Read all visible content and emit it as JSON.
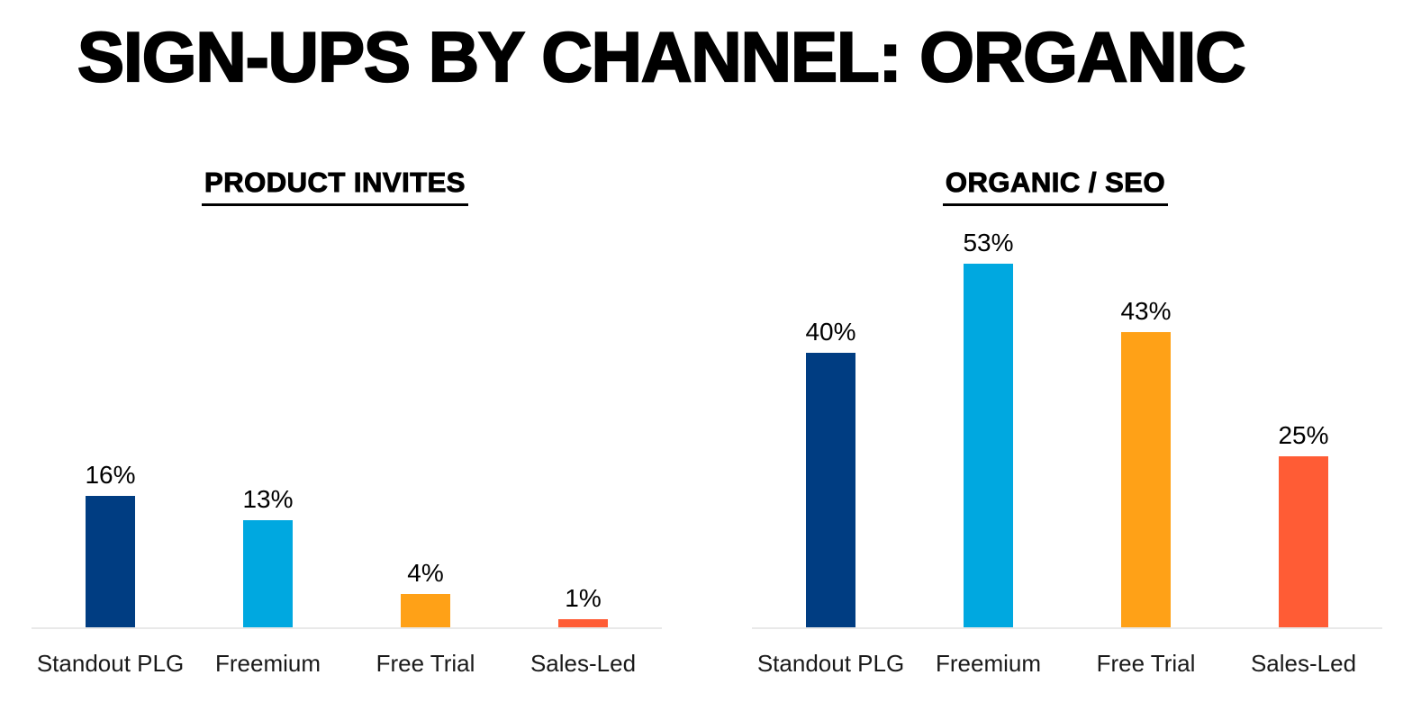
{
  "page": {
    "title": "SIGN-UPS BY CHANNEL: ORGANIC",
    "background_color": "#ffffff",
    "text_color": "#000000",
    "axis_line_color": "#e9e9e9"
  },
  "chart_data": [
    {
      "type": "bar",
      "title": "PRODUCT INVITES",
      "categories": [
        "Standout PLG",
        "Freemium",
        "Free Trial",
        "Sales-Led"
      ],
      "values": [
        16,
        13,
        4,
        1
      ],
      "value_labels": [
        "16%",
        "13%",
        "4%",
        "1%"
      ],
      "bar_colors": [
        "#003d82",
        "#00a8e0",
        "#ffa117",
        "#ff5c35"
      ],
      "xlabel": "",
      "ylabel": "",
      "ylim": [
        0,
        50
      ],
      "unit": "%",
      "grid": false,
      "legend_position": "none"
    },
    {
      "type": "bar",
      "title": "ORGANIC / SEO",
      "categories": [
        "Standout PLG",
        "Freemium",
        "Free Trial",
        "Sales-Led"
      ],
      "values": [
        40,
        53,
        43,
        25
      ],
      "value_labels": [
        "40%",
        "53%",
        "43%",
        "25%"
      ],
      "bar_colors": [
        "#003d82",
        "#00a8e0",
        "#ffa117",
        "#ff5c35"
      ],
      "xlabel": "",
      "ylabel": "",
      "ylim": [
        0,
        60
      ],
      "unit": "%",
      "grid": false,
      "legend_position": "none"
    }
  ]
}
